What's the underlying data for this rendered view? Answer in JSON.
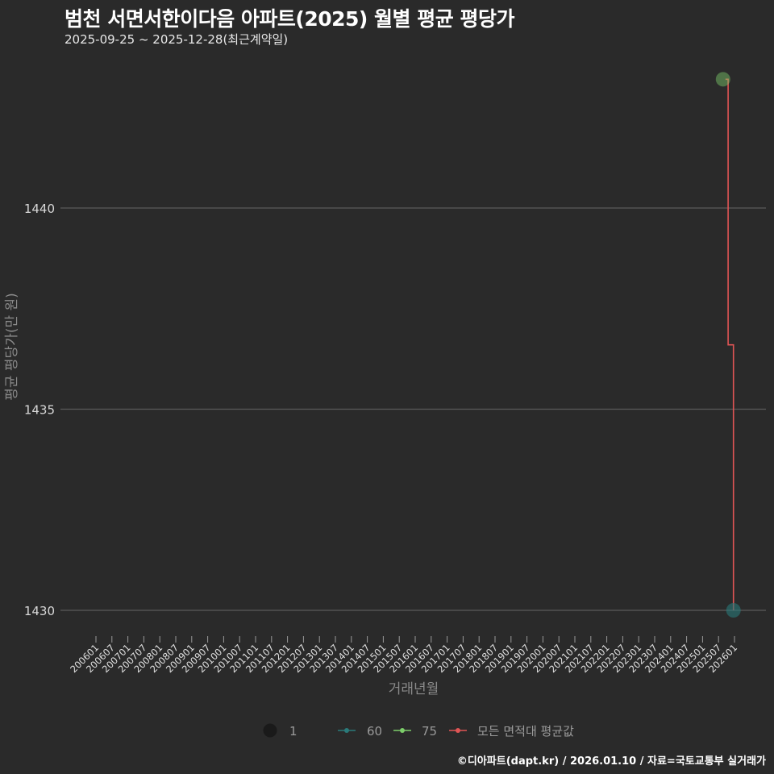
{
  "header": {
    "title": "범천 서면서한이다음 아파트(2025) 월별 평균 평당가",
    "subtitle": "2025-09-25 ~ 2025-12-28(최근계약일)"
  },
  "caption": "©디아파트(dapt.kr) / 2026.01.10 / 자료=국토교통부 실거래가",
  "colors": {
    "background": "#2a2a2a",
    "grid": "#5a5a5a",
    "series_60": "#2a7a7a",
    "series_75": "#7ccd6a",
    "series_all": "#e05555"
  },
  "chart_data": {
    "type": "line",
    "title": "범천 서면서한이다음 아파트(2025) 월별 평균 평당가",
    "subtitle": "2025-09-25 ~ 2025-12-28(최근계약일)",
    "xlabel": "거래년월",
    "ylabel": "평균 평당가(만 원)",
    "ylim": [
      1429.3,
      1444.0
    ],
    "yticks": [
      1430,
      1435,
      1440
    ],
    "grid": true,
    "xticks": [
      "200601",
      "200607",
      "200701",
      "200707",
      "200801",
      "200807",
      "200901",
      "200907",
      "201001",
      "201007",
      "201101",
      "201107",
      "201201",
      "201207",
      "201301",
      "201307",
      "201401",
      "201407",
      "201501",
      "201507",
      "201601",
      "201607",
      "201701",
      "201707",
      "201801",
      "201807",
      "201901",
      "201907",
      "202001",
      "202007",
      "202101",
      "202107",
      "202201",
      "202207",
      "202301",
      "202307",
      "202401",
      "202407",
      "202501",
      "202507",
      "202601"
    ],
    "legend": {
      "position": "bottom",
      "size_title": "",
      "size_entries": [
        "1"
      ],
      "color_entries": [
        "60",
        "75",
        "모든 면적대 평균값"
      ]
    },
    "series": [
      {
        "name": "60",
        "points": [
          {
            "x": "202512",
            "y": 1430.0,
            "count": 1
          }
        ]
      },
      {
        "name": "75",
        "points": [
          {
            "x": "202509",
            "y": 1443.2,
            "count": 1
          }
        ]
      },
      {
        "name": "모든 면적대 평균값",
        "type": "step",
        "points": [
          {
            "x": "202509",
            "y": 1443.2
          },
          {
            "x": "202510",
            "y": 1436.6
          },
          {
            "x": "202511",
            "y": 1436.6
          },
          {
            "x": "202512",
            "y": 1430.0
          }
        ]
      }
    ]
  }
}
